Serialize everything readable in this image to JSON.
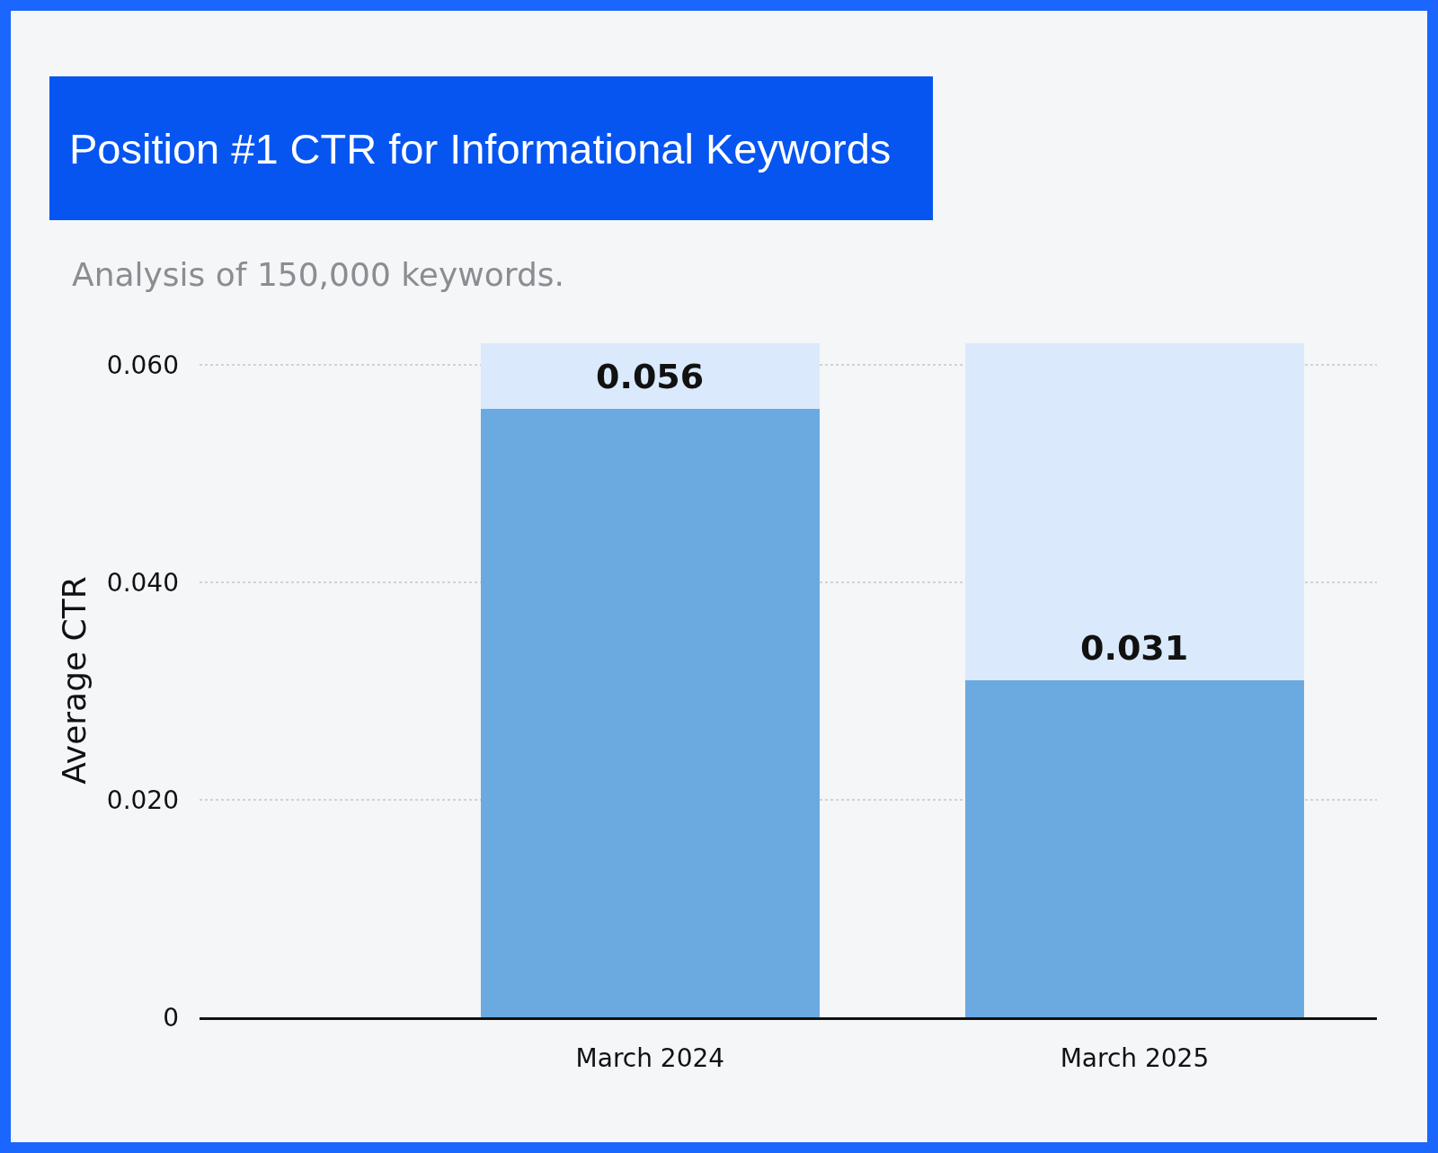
{
  "chart_data": {
    "type": "bar",
    "title": "Position #1 CTR for Informational Keywords",
    "subtitle": "Analysis of 150,000 keywords.",
    "ylabel": "Average CTR",
    "categories": [
      "March 2024",
      "March 2025"
    ],
    "stacked": true,
    "series": [
      {
        "color": "#6aaae0",
        "values": [
          0.056,
          0.031
        ],
        "value_labels": [
          "0.056",
          "0.031"
        ]
      },
      {
        "color": "#dae9fb",
        "values": [
          0.006,
          0.031
        ]
      }
    ],
    "ylim": [
      0,
      0.062
    ],
    "yticks": [
      0,
      {
        "value": 0.02,
        "label": "0.020"
      },
      {
        "value": 0.04,
        "label": "0.040"
      },
      {
        "value": 0.06,
        "label": "0.060"
      }
    ],
    "grid": "y"
  }
}
